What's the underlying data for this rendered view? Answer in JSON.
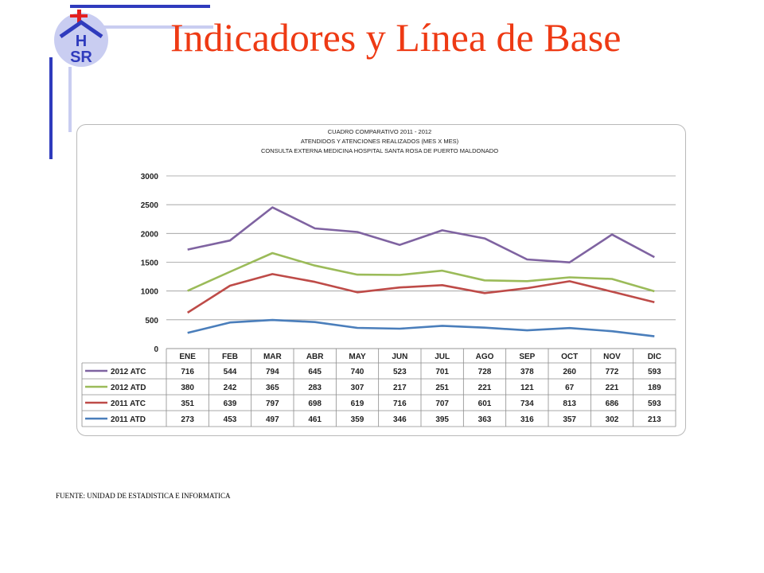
{
  "slide": {
    "title": "Indicadores y Línea de Base",
    "logo_text": "HSR",
    "source": "FUENTE: UNIDAD DE ESTADISTICA E INFORMATICA",
    "colors": {
      "title": "#ee3a14",
      "deco_dark": "#2f3bbd",
      "deco_light": "#c9cdf1",
      "logo_red": "#e41f1f"
    }
  },
  "chart_data": {
    "type": "line",
    "title_lines": [
      "CUADRO COMPARATIVO 2011 - 2012",
      "ATENDIDOS Y ATENCIONES  REALIZADOS (MES X MES)",
      "CONSULTA EXTERNA MEDICINA HOSPITAL SANTA ROSA DE PUERTO MALDONADO"
    ],
    "categories": [
      "ENE",
      "FEB",
      "MAR",
      "ABR",
      "MAY",
      "JUN",
      "JUL",
      "AGO",
      "SEP",
      "OCT",
      "NOV",
      "DIC"
    ],
    "ylim": [
      0,
      3000
    ],
    "yticks": [
      0,
      500,
      1000,
      1500,
      2000,
      2500,
      3000
    ],
    "stacked": true,
    "grid": true,
    "legend": "data-table",
    "series": [
      {
        "name": "2012 ATC",
        "color": "#7f63a1",
        "values": [
          716,
          544,
          794,
          645,
          740,
          523,
          701,
          728,
          378,
          260,
          772,
          593
        ]
      },
      {
        "name": "2012 ATD",
        "color": "#9bbb59",
        "values": [
          380,
          242,
          365,
          283,
          307,
          217,
          251,
          221,
          121,
          67,
          221,
          189
        ]
      },
      {
        "name": "2011 ATC",
        "color": "#be4b48",
        "values": [
          351,
          639,
          797,
          698,
          619,
          716,
          707,
          601,
          734,
          813,
          686,
          593
        ]
      },
      {
        "name": "2011 ATD",
        "color": "#4a7ebb",
        "values": [
          273,
          453,
          497,
          461,
          359,
          346,
          395,
          363,
          316,
          357,
          302,
          213
        ]
      }
    ]
  }
}
